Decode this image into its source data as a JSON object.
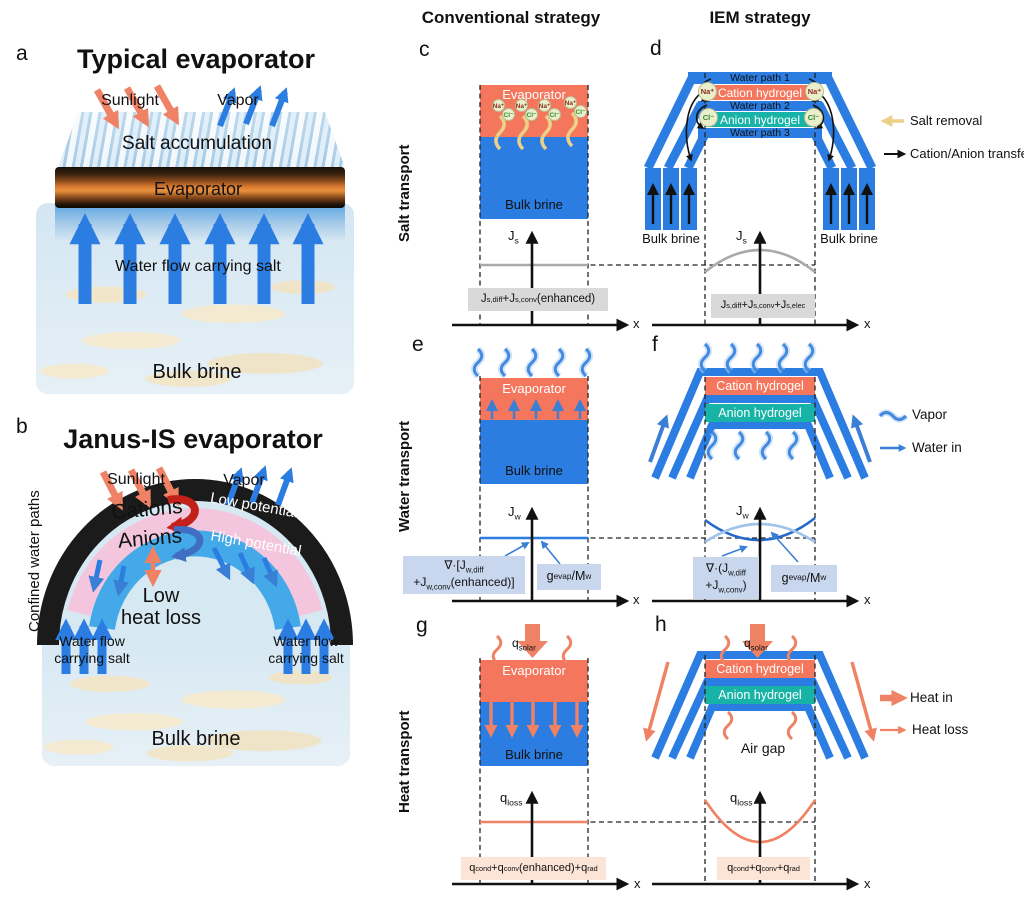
{
  "colors": {
    "coral": "#f4765c",
    "blue": "#2b7de1",
    "teal": "#16b3a6",
    "salmon_arrow": "#ef8265",
    "gray_line": "#a9a9a9",
    "gray_box": "#d9d9d9",
    "blue_label_box": "#c9d7ee",
    "salmon_label_box": "#fce4d6",
    "salt_yellow": "#ecd089",
    "ink": "#111111"
  },
  "headers": {
    "conventional": "Conventional strategy",
    "iem": "IEM strategy"
  },
  "row_labels": {
    "salt": "Salt transport",
    "water": "Water transport",
    "heat": "Heat transport"
  },
  "panel_a": {
    "letter": "a",
    "title": "Typical evaporator",
    "sunlight": "Sunlight",
    "vapor": "Vapor",
    "salt_accumulation": "Salt accumulation",
    "evaporator": "Evaporator",
    "water_flow": "Water flow carrying salt",
    "bulk_brine": "Bulk brine"
  },
  "panel_b": {
    "letter": "b",
    "title": "Janus-IS evaporator",
    "sunlight": "Sunlight",
    "vapor": "Vapor",
    "cations": "Cations",
    "anions": "Anions",
    "low_potential": "Low potential",
    "high_potential": "High potential",
    "low_heat_loss_line1": "Low",
    "low_heat_loss_line2": "heat loss",
    "confined_water_paths": "Confined water paths",
    "water_flow_line1": "Water flow",
    "water_flow_line2": "carrying salt",
    "bulk_brine": "Bulk brine"
  },
  "panel_c": {
    "letter": "c",
    "evaporator": "Evaporator",
    "bulk_brine": "Bulk brine",
    "na": "Na⁺",
    "cl": "Cl⁻",
    "y_axis": "J_{s}",
    "formula": "J_{s,diff}+J_{s,conv}(enhanced)",
    "x_axis": "x"
  },
  "panel_d": {
    "letter": "d",
    "water_path_1": "Water path 1",
    "cation_hydrogel": "Cation hydrogel",
    "water_path_2": "Water path 2",
    "anion_hydrogel": "Anion hydrogel",
    "water_path_3": "Water path 3",
    "na": "Na⁺",
    "cl": "Cl⁻",
    "bulk_brine": "Bulk brine",
    "legend_salt_removal": "Salt removal",
    "legend_ion_transfer": "Cation/Anion transfer",
    "y_axis": "J_{s}",
    "formula": "J_{s,diff}+J_{s,conv}+J_{s,elec}",
    "x_axis": "x"
  },
  "panel_e": {
    "letter": "e",
    "evaporator": "Evaporator",
    "bulk_brine": "Bulk brine",
    "y_axis": "J_{w}",
    "formula_left_line1": "∇·[J_{w,diff}",
    "formula_left_line2": "+J_{w,conv}(enhanced)]",
    "formula_right": "g_{evap}/M_{w}",
    "x_axis": "x"
  },
  "panel_f": {
    "letter": "f",
    "cation_hydrogel": "Cation hydrogel",
    "anion_hydrogel": "Anion hydrogel",
    "legend_vapor": "Vapor",
    "legend_water_in": "Water in",
    "y_axis": "J_{w}",
    "formula_left_line1": "∇·(J_{w,diff}",
    "formula_left_line2": "+J_{w,conv})",
    "formula_right": "g_{evap}/M_{w}",
    "x_axis": "x"
  },
  "panel_g": {
    "letter": "g",
    "q_solar": "q_{solar}",
    "evaporator": "Evaporator",
    "bulk_brine": "Bulk brine",
    "y_axis": "q_{loss}",
    "formula": "q_{cond}+q_{conv}(enhanced)+q_{rad}",
    "x_axis": "x"
  },
  "panel_h": {
    "letter": "h",
    "q_solar": "q_{solar}",
    "cation_hydrogel": "Cation hydrogel",
    "anion_hydrogel": "Anion hydrogel",
    "air_gap": "Air gap",
    "legend_heat_in": "Heat in",
    "legend_heat_loss": "Heat loss",
    "y_axis": "q_{loss}",
    "formula": "q_{cond}+q_{conv}+q_{rad}",
    "x_axis": "x"
  }
}
